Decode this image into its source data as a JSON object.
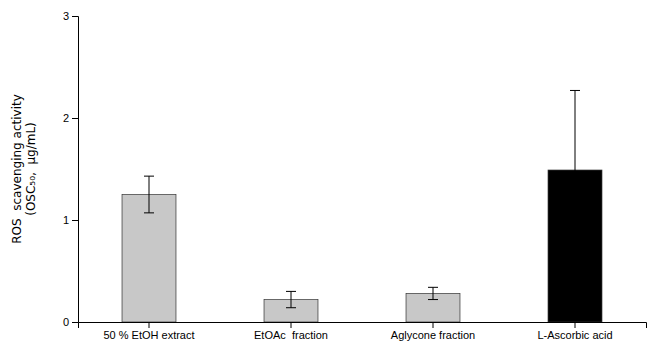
{
  "chart_data": {
    "type": "bar",
    "categories": [
      "50 % EtOH extract",
      "EtOAc  fraction",
      "Aglycone fraction",
      "L-Ascorbic acid"
    ],
    "values": [
      1.25,
      0.22,
      0.28,
      1.49
    ],
    "errors": [
      0.18,
      0.08,
      0.06,
      0.78
    ],
    "colors": [
      "#c8c8c8",
      "#c8c8c8",
      "#c8c8c8",
      "#000000"
    ],
    "ylabel": "ROS  scavenging activity\n(OSC₅₀,  μg/mL)",
    "ylim": [
      0,
      3
    ],
    "yticks": [
      0,
      1,
      2,
      3
    ],
    "grid": false
  }
}
